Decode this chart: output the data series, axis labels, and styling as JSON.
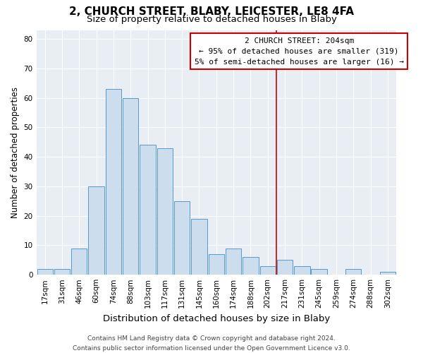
{
  "title": "2, CHURCH STREET, BLABY, LEICESTER, LE8 4FA",
  "subtitle": "Size of property relative to detached houses in Blaby",
  "xlabel": "Distribution of detached houses by size in Blaby",
  "ylabel": "Number of detached properties",
  "bar_labels": [
    "17sqm",
    "31sqm",
    "46sqm",
    "60sqm",
    "74sqm",
    "88sqm",
    "103sqm",
    "117sqm",
    "131sqm",
    "145sqm",
    "160sqm",
    "174sqm",
    "188sqm",
    "202sqm",
    "217sqm",
    "231sqm",
    "245sqm",
    "259sqm",
    "274sqm",
    "288sqm",
    "302sqm"
  ],
  "bar_values": [
    2,
    2,
    9,
    30,
    63,
    60,
    44,
    43,
    25,
    19,
    7,
    9,
    6,
    3,
    5,
    3,
    2,
    0,
    2,
    0,
    1
  ],
  "bar_color": "#ccdded",
  "bar_edge_color": "#5599cc",
  "ylim": [
    0,
    83
  ],
  "yticks": [
    0,
    10,
    20,
    30,
    40,
    50,
    60,
    70,
    80
  ],
  "vline_x_index": 13.5,
  "vline_color": "#cc0000",
  "annotation_title": "2 CHURCH STREET: 204sqm",
  "annotation_line1": "← 95% of detached houses are smaller (319)",
  "annotation_line2": "5% of semi-detached houses are larger (16) →",
  "footer_line1": "Contains HM Land Registry data © Crown copyright and database right 2024.",
  "footer_line2": "Contains public sector information licensed under the Open Government Licence v3.0.",
  "background_color": "#e8eef4",
  "grid_color": "#ffffff",
  "title_fontsize": 11,
  "subtitle_fontsize": 9.5,
  "xlabel_fontsize": 9.5,
  "ylabel_fontsize": 8.5,
  "tick_fontsize": 7.5,
  "annotation_fontsize": 8,
  "footer_fontsize": 6.5
}
